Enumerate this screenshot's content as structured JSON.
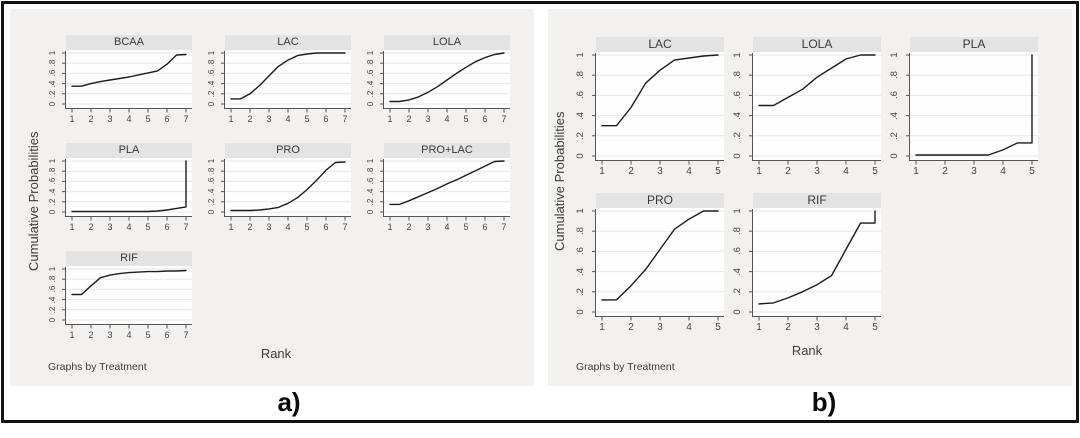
{
  "figure": {
    "panels": [
      {
        "id": "a",
        "caption": "a)",
        "ylabel": "Cumulative Probabilities",
        "xlabel": "Rank",
        "note": "Graphs by Treatment"
      },
      {
        "id": "b",
        "caption": "b)",
        "ylabel": "Cumulative Probabilities",
        "xlabel": "Rank",
        "note": "Graphs by Treatment"
      }
    ]
  },
  "chart_data": [
    {
      "type": "line",
      "panel": "a",
      "ylabel": "Cumulative Probabilities",
      "xlabel": "Rank",
      "note": "Graphs by Treatment",
      "xlim": [
        1,
        7
      ],
      "ylim": [
        0,
        1
      ],
      "x_ticks": [
        1,
        2,
        3,
        4,
        5,
        6,
        7
      ],
      "x_tick_labels": [
        "1",
        "2",
        "3",
        "4",
        "5",
        "6",
        "7"
      ],
      "y_ticks": [
        0,
        0.2,
        0.4,
        0.6,
        0.8,
        1
      ],
      "y_tick_labels": [
        "0",
        ".2",
        ".4",
        ".6",
        ".8",
        "1"
      ],
      "grid": "horizontal",
      "rows": [
        [
          "BCAA",
          "LAC",
          "LOLA"
        ],
        [
          "PLA",
          "PRO",
          "PRO+LAC"
        ],
        [
          "RIF"
        ]
      ],
      "series": [
        {
          "name": "BCAA",
          "points": [
            [
              1,
              0.35
            ],
            [
              1.5,
              0.35
            ],
            [
              2,
              0.4
            ],
            [
              2.5,
              0.44
            ],
            [
              3,
              0.47
            ],
            [
              3.5,
              0.5
            ],
            [
              4,
              0.53
            ],
            [
              4.5,
              0.57
            ],
            [
              5,
              0.61
            ],
            [
              5.5,
              0.65
            ],
            [
              6,
              0.78
            ],
            [
              6.5,
              0.96
            ],
            [
              7,
              0.97
            ]
          ]
        },
        {
          "name": "LAC",
          "points": [
            [
              1,
              0.1
            ],
            [
              1.5,
              0.1
            ],
            [
              2,
              0.2
            ],
            [
              2.5,
              0.36
            ],
            [
              3,
              0.55
            ],
            [
              3.5,
              0.74
            ],
            [
              4,
              0.86
            ],
            [
              4.5,
              0.95
            ],
            [
              5,
              0.98
            ],
            [
              5.5,
              1
            ],
            [
              6,
              1
            ],
            [
              6.5,
              1
            ],
            [
              7,
              1
            ]
          ]
        },
        {
          "name": "LOLA",
          "points": [
            [
              1,
              0.05
            ],
            [
              1.5,
              0.05
            ],
            [
              2,
              0.08
            ],
            [
              2.5,
              0.14
            ],
            [
              3,
              0.23
            ],
            [
              3.5,
              0.34
            ],
            [
              4,
              0.47
            ],
            [
              4.5,
              0.6
            ],
            [
              5,
              0.72
            ],
            [
              5.5,
              0.83
            ],
            [
              6,
              0.91
            ],
            [
              6.5,
              0.97
            ],
            [
              7,
              1
            ]
          ]
        },
        {
          "name": "PLA",
          "points": [
            [
              1,
              0.01
            ],
            [
              2,
              0.01
            ],
            [
              3,
              0.01
            ],
            [
              4,
              0.01
            ],
            [
              5,
              0.01
            ],
            [
              5.5,
              0.02
            ],
            [
              6,
              0.04
            ],
            [
              6.5,
              0.07
            ],
            [
              7,
              0.1
            ],
            [
              7,
              1
            ]
          ]
        },
        {
          "name": "PRO",
          "points": [
            [
              1,
              0.03
            ],
            [
              1.5,
              0.03
            ],
            [
              2,
              0.03
            ],
            [
              2.5,
              0.04
            ],
            [
              3,
              0.06
            ],
            [
              3.5,
              0.09
            ],
            [
              4,
              0.17
            ],
            [
              4.5,
              0.28
            ],
            [
              5,
              0.44
            ],
            [
              5.5,
              0.62
            ],
            [
              6,
              0.82
            ],
            [
              6.5,
              0.97
            ],
            [
              7,
              0.98
            ]
          ]
        },
        {
          "name": "PRO+LAC",
          "points": [
            [
              1,
              0.15
            ],
            [
              1.5,
              0.15
            ],
            [
              2,
              0.22
            ],
            [
              2.5,
              0.3
            ],
            [
              3,
              0.38
            ],
            [
              3.5,
              0.46
            ],
            [
              4,
              0.55
            ],
            [
              4.5,
              0.63
            ],
            [
              5,
              0.72
            ],
            [
              5.5,
              0.81
            ],
            [
              6,
              0.9
            ],
            [
              6.5,
              0.99
            ],
            [
              7,
              1
            ]
          ]
        },
        {
          "name": "RIF",
          "points": [
            [
              1,
              0.5
            ],
            [
              1.5,
              0.5
            ],
            [
              2,
              0.67
            ],
            [
              2.5,
              0.83
            ],
            [
              3,
              0.88
            ],
            [
              3.5,
              0.91
            ],
            [
              4,
              0.93
            ],
            [
              4.5,
              0.94
            ],
            [
              5,
              0.95
            ],
            [
              5.5,
              0.95
            ],
            [
              6,
              0.96
            ],
            [
              6.5,
              0.96
            ],
            [
              7,
              0.97
            ]
          ]
        }
      ]
    },
    {
      "type": "line",
      "panel": "b",
      "ylabel": "Cumulative Probabilities",
      "xlabel": "Rank",
      "note": "Graphs by Treatment",
      "xlim": [
        1,
        5
      ],
      "ylim": [
        0,
        1
      ],
      "x_ticks": [
        1,
        2,
        3,
        4,
        5
      ],
      "x_tick_labels": [
        "1",
        "2",
        "3",
        "4",
        "5"
      ],
      "y_ticks": [
        0,
        0.2,
        0.4,
        0.6,
        0.8,
        1
      ],
      "y_tick_labels": [
        "0",
        ".2",
        ".4",
        ".6",
        ".8",
        "1"
      ],
      "grid": "horizontal",
      "rows": [
        [
          "LAC",
          "LOLA",
          "PLA"
        ],
        [
          "PRO",
          "RIF"
        ]
      ],
      "series": [
        {
          "name": "LAC",
          "points": [
            [
              1,
              0.3
            ],
            [
              1.5,
              0.3
            ],
            [
              2,
              0.48
            ],
            [
              2.5,
              0.72
            ],
            [
              3,
              0.85
            ],
            [
              3.5,
              0.95
            ],
            [
              4,
              0.97
            ],
            [
              4.5,
              0.99
            ],
            [
              5,
              1
            ]
          ]
        },
        {
          "name": "LOLA",
          "points": [
            [
              1,
              0.5
            ],
            [
              1.5,
              0.5
            ],
            [
              2,
              0.58
            ],
            [
              2.5,
              0.66
            ],
            [
              3,
              0.78
            ],
            [
              3.5,
              0.87
            ],
            [
              4,
              0.96
            ],
            [
              4.5,
              1
            ],
            [
              5,
              1
            ]
          ]
        },
        {
          "name": "PLA",
          "points": [
            [
              1,
              0.01
            ],
            [
              1.5,
              0.01
            ],
            [
              2,
              0.01
            ],
            [
              2.5,
              0.01
            ],
            [
              3,
              0.01
            ],
            [
              3.5,
              0.01
            ],
            [
              4,
              0.06
            ],
            [
              4.5,
              0.13
            ],
            [
              5,
              0.13
            ],
            [
              5,
              1
            ]
          ]
        },
        {
          "name": "PRO",
          "points": [
            [
              1,
              0.12
            ],
            [
              1.5,
              0.12
            ],
            [
              2,
              0.26
            ],
            [
              2.5,
              0.42
            ],
            [
              3,
              0.62
            ],
            [
              3.5,
              0.82
            ],
            [
              4,
              0.92
            ],
            [
              4.5,
              1
            ],
            [
              5,
              1
            ]
          ]
        },
        {
          "name": "RIF",
          "points": [
            [
              1,
              0.08
            ],
            [
              1.5,
              0.09
            ],
            [
              2,
              0.14
            ],
            [
              2.5,
              0.2
            ],
            [
              3,
              0.27
            ],
            [
              3.5,
              0.36
            ],
            [
              4,
              0.62
            ],
            [
              4.5,
              0.88
            ],
            [
              5,
              0.88
            ],
            [
              5,
              1
            ]
          ]
        }
      ]
    }
  ]
}
